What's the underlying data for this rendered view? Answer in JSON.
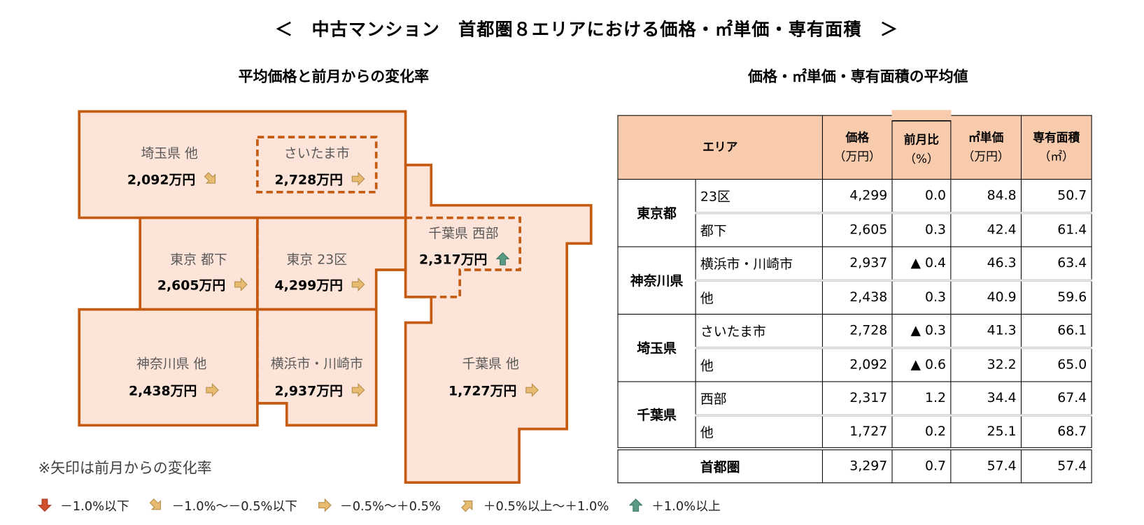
{
  "title": "＜　中古マンション　首都圏８エリアにおける価格・㎡単価・専有面積　＞",
  "map": {
    "title": "平均価格と前月からの変化率",
    "areas": [
      {
        "name": "埼玉県 他",
        "price": "2,092万円",
        "arrow": "down-right"
      },
      {
        "name": "さいたま市",
        "price": "2,728万円",
        "arrow": "right"
      },
      {
        "name": "東京 都下",
        "price": "2,605万円",
        "arrow": "right"
      },
      {
        "name": "東京 23区",
        "price": "4,299万円",
        "arrow": "right"
      },
      {
        "name": "千葉県 西部",
        "price": "2,317万円",
        "arrow": "up"
      },
      {
        "name": "神奈川県 他",
        "price": "2,438万円",
        "arrow": "right"
      },
      {
        "name": "横浜市・川崎市",
        "price": "2,937万円",
        "arrow": "right"
      },
      {
        "name": "千葉県 他",
        "price": "1,727万円",
        "arrow": "right"
      }
    ],
    "note": "※矢印は前月からの変化率",
    "legend": [
      {
        "arrow": "down",
        "label": "－1.0%以下"
      },
      {
        "arrow": "down-right",
        "label": "－1.0%～－0.5%以下"
      },
      {
        "arrow": "right",
        "label": "－0.5%～＋0.5%"
      },
      {
        "arrow": "up-right",
        "label": "＋0.5%以上～＋1.0%"
      },
      {
        "arrow": "up",
        "label": "＋1.0%以上"
      }
    ]
  },
  "table": {
    "title": "価格・㎡単価・専有面積の平均値",
    "headers": {
      "area": "エリア",
      "price": "価格",
      "price_unit": "（万円）",
      "change": "前月比",
      "change_unit": "（%）",
      "unit_price": "㎡単価",
      "unit_price_unit": "（万円）",
      "size": "専有面積",
      "size_unit": "（㎡）"
    },
    "groups": [
      {
        "name": "東京都",
        "rows": [
          {
            "area": "23区",
            "price": "4,299",
            "change": "0.0",
            "unit_price": "84.8",
            "size": "50.7"
          },
          {
            "area": "都下",
            "price": "2,605",
            "change": "0.3",
            "unit_price": "42.4",
            "size": "61.4"
          }
        ]
      },
      {
        "name": "神奈川県",
        "rows": [
          {
            "area": "横浜市・川崎市",
            "price": "2,937",
            "change": "▲ 0.4",
            "unit_price": "46.3",
            "size": "63.4"
          },
          {
            "area": "他",
            "price": "2,438",
            "change": "0.3",
            "unit_price": "40.9",
            "size": "59.6"
          }
        ]
      },
      {
        "name": "埼玉県",
        "rows": [
          {
            "area": "さいたま市",
            "price": "2,728",
            "change": "▲ 0.3",
            "unit_price": "41.3",
            "size": "66.1"
          },
          {
            "area": "他",
            "price": "2,092",
            "change": "▲ 0.6",
            "unit_price": "32.2",
            "size": "65.0"
          }
        ]
      },
      {
        "name": "千葉県",
        "rows": [
          {
            "area": "西部",
            "price": "2,317",
            "change": "1.2",
            "unit_price": "34.4",
            "size": "67.4"
          },
          {
            "area": "他",
            "price": "1,727",
            "change": "0.2",
            "unit_price": "25.1",
            "size": "68.7"
          }
        ]
      }
    ],
    "total": {
      "area": "首都圏",
      "price": "3,297",
      "change": "0.7",
      "unit_price": "57.4",
      "size": "57.4"
    }
  },
  "colors": {
    "area_fill": "#fde4d8",
    "area_border": "#c55a11",
    "header_bg": "#f8cbad",
    "arrow_down": "#d0502f",
    "arrow_neutral": "#e8bc70",
    "arrow_up": "#5b9b86"
  }
}
